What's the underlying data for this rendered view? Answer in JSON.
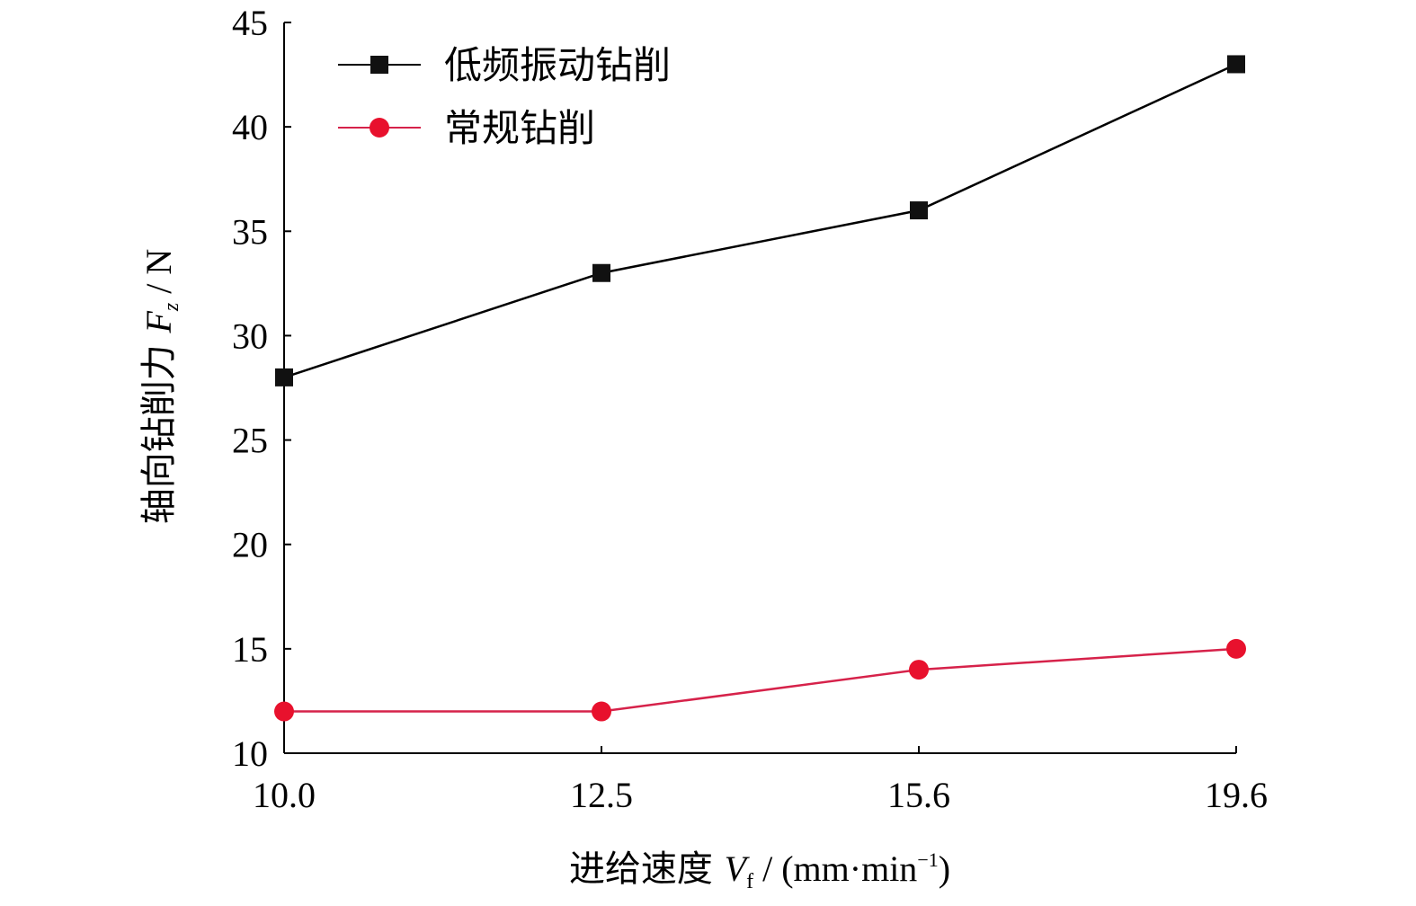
{
  "chart_data": {
    "type": "line",
    "categories": [
      "10.0",
      "12.5",
      "15.6",
      "19.6"
    ],
    "series": [
      {
        "name": "低频振动钻削",
        "values": [
          28,
          33,
          36,
          43
        ],
        "color": "#000000",
        "marker_color": "#111111",
        "marker": "square"
      },
      {
        "name": "常规钻削",
        "values": [
          12,
          12,
          14,
          15
        ],
        "color": "#d6224a",
        "marker_color": "#e8112d",
        "marker": "circle"
      }
    ],
    "xlabel": {
      "prefix": "进给速度 ",
      "var": "V",
      "sub": "f",
      "unit": " / (mm·min",
      "exp": "−1",
      "close": ")"
    },
    "ylabel": {
      "prefix": "轴向钻削力 ",
      "var": "F",
      "sub": "z",
      "unit": " / N"
    },
    "ylim": [
      10,
      45
    ],
    "yticks": [
      10,
      15,
      20,
      25,
      30,
      35,
      40,
      45
    ],
    "grid": false,
    "legend_position": "top-left"
  }
}
